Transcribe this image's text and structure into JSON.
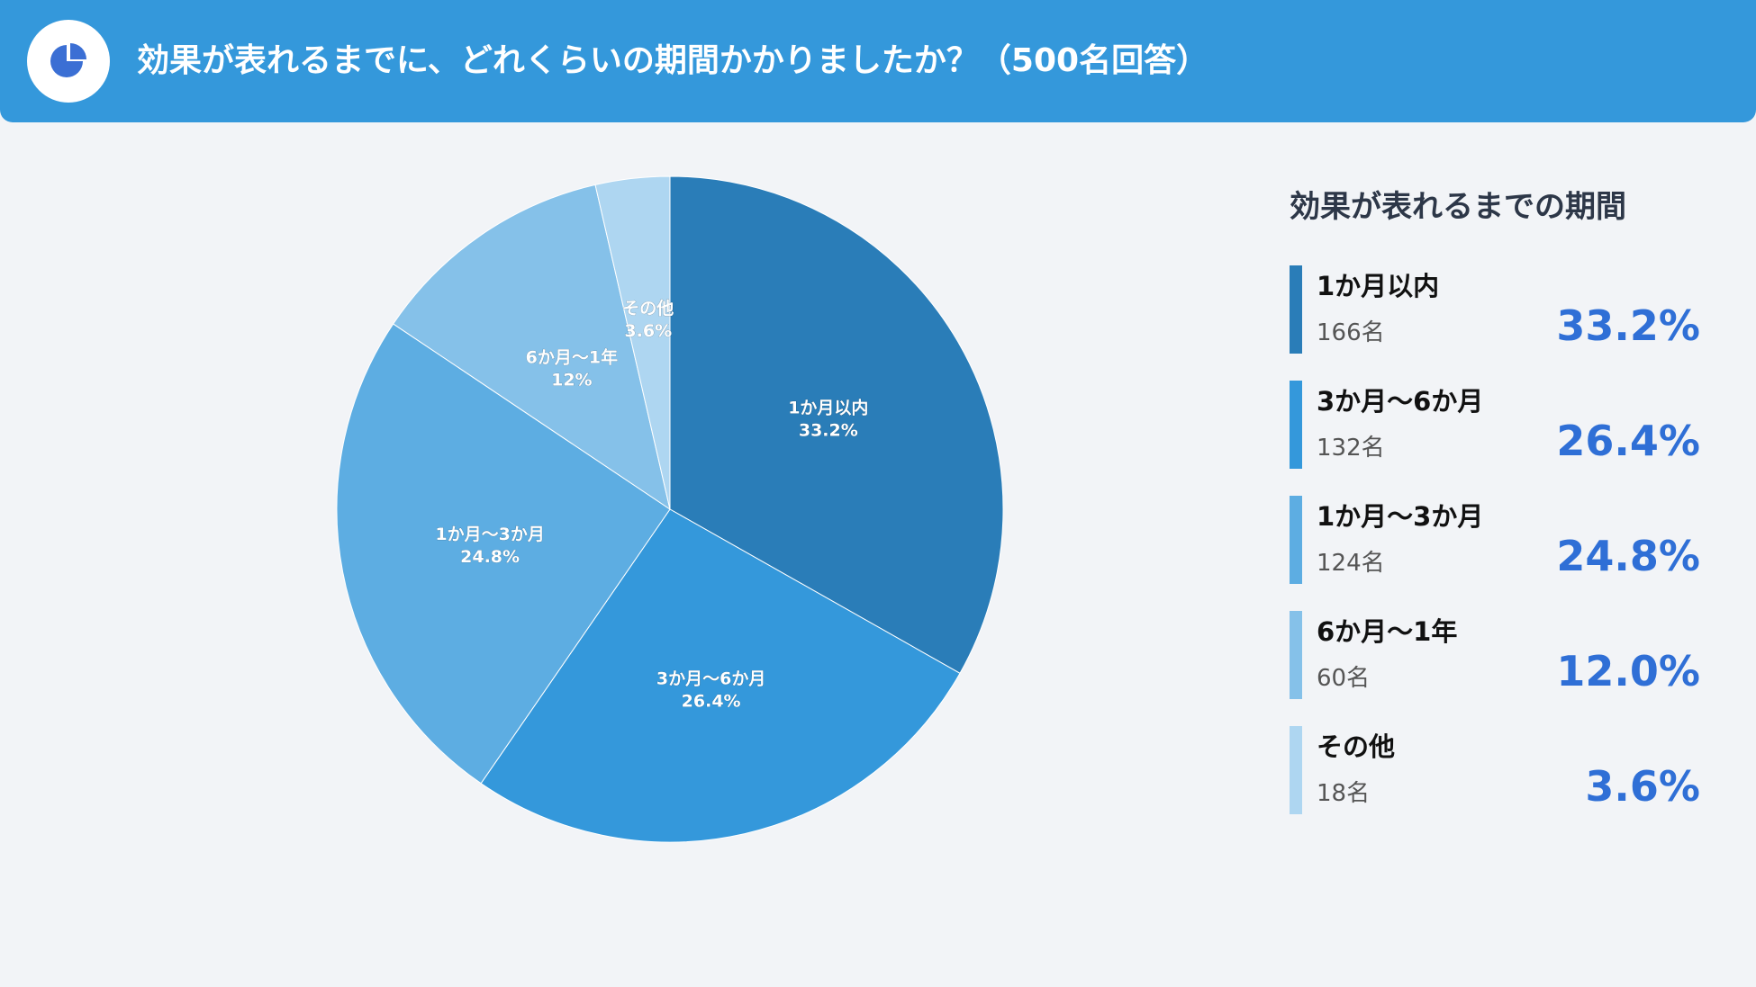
{
  "header": {
    "title": "効果が表れるまでに、どれくらいの期間かかりましたか？（500名回答）",
    "icon": "pie-chart-icon"
  },
  "legend": {
    "title": "効果が表れるまでの期間",
    "items": [
      {
        "label": "1か月以内",
        "count": "166名",
        "percent": "33.2%",
        "color": "#2a7db8"
      },
      {
        "label": "3か月〜6か月",
        "count": "132名",
        "percent": "26.4%",
        "color": "#3498db"
      },
      {
        "label": "1か月〜3か月",
        "count": "124名",
        "percent": "24.8%",
        "color": "#5dade2"
      },
      {
        "label": "6か月〜1年",
        "count": "60名",
        "percent": "12.0%",
        "color": "#85c1e9"
      },
      {
        "label": "その他",
        "count": "18名",
        "percent": "3.6%",
        "color": "#aed6f1"
      }
    ]
  },
  "chart_data": {
    "type": "pie",
    "title": "",
    "categories": [
      "1か月以内",
      "3か月〜6か月",
      "1か月〜3か月",
      "6か月〜1年",
      "その他"
    ],
    "values": [
      33.2,
      26.4,
      24.8,
      12,
      3.6
    ],
    "value_labels": [
      "33.2%",
      "26.4%",
      "24.8%",
      "12%",
      "3.6%"
    ],
    "colors": [
      "#2a7db8",
      "#3498db",
      "#5dade2",
      "#85c1e9",
      "#aed6f1"
    ],
    "start": "top",
    "direction": "clockwise",
    "legend": "right"
  }
}
